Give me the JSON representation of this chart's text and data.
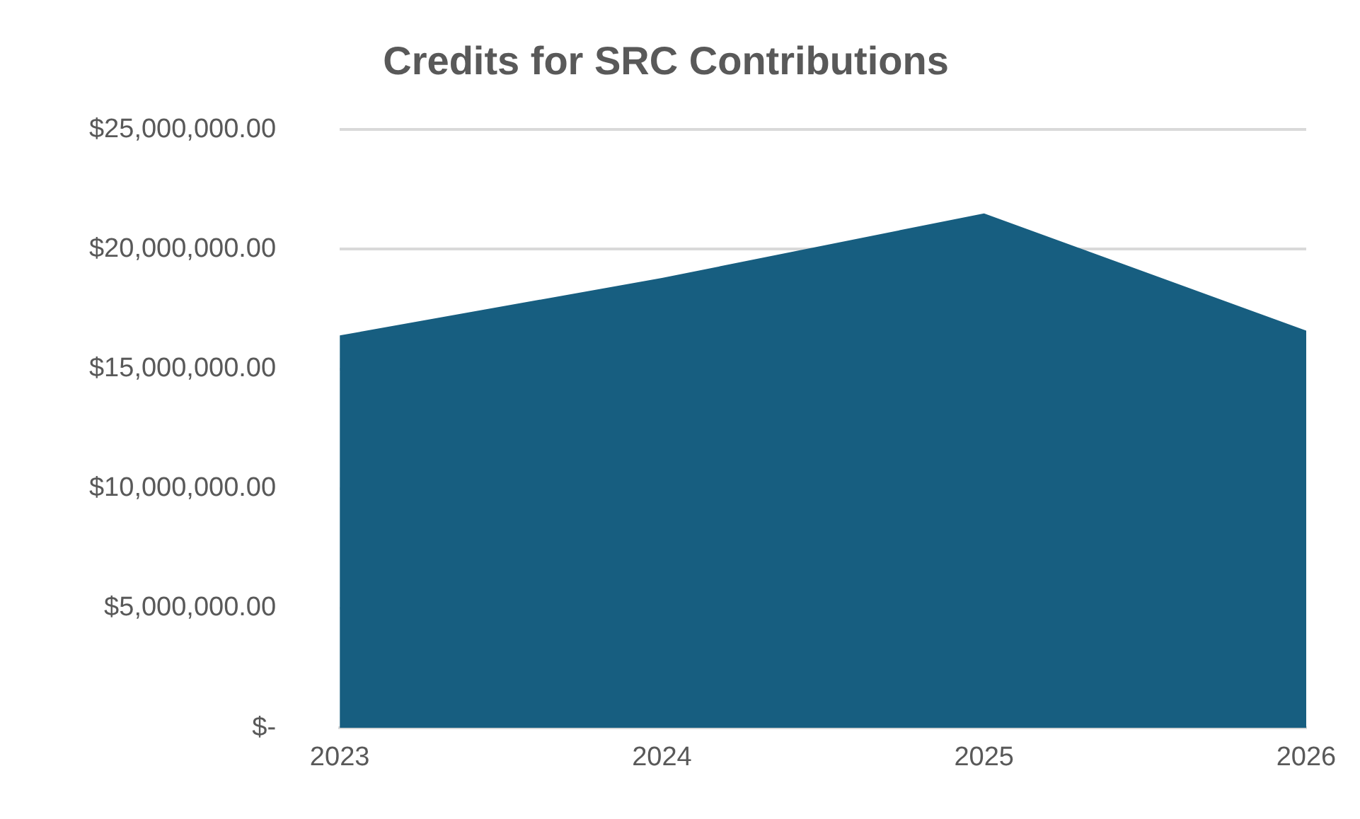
{
  "chart_data": {
    "type": "area",
    "title": "Credits for SRC Contributions",
    "categories": [
      "2023",
      "2024",
      "2025",
      "2026"
    ],
    "series": [
      {
        "color": "#175e80",
        "values": [
          16400000,
          18800000,
          21500000,
          16600000
        ]
      }
    ],
    "ylim": [
      0,
      25000000
    ],
    "yticks": [
      {
        "value": 0,
        "label": "$-"
      },
      {
        "value": 5000000,
        "label": "$5,000,000.00"
      },
      {
        "value": 10000000,
        "label": "$10,000,000.00"
      },
      {
        "value": 15000000,
        "label": "$15,000,000.00"
      },
      {
        "value": 20000000,
        "label": "$20,000,000.00"
      },
      {
        "value": 25000000,
        "label": "$25,000,000.00"
      }
    ],
    "grid": "y",
    "legend": false
  }
}
